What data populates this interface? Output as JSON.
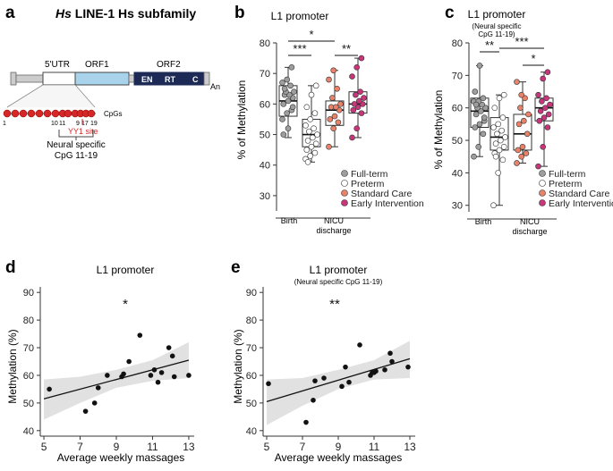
{
  "colors": {
    "fullterm": "#9e9e9e",
    "preterm": "#ffffff",
    "standard": "#e8836a",
    "early": "#c8357a",
    "utr": "#ffffff",
    "orf1": "#a9d3ea",
    "orf2": "#1d2a55",
    "cpg": "#d62728",
    "yy1": "#d62728",
    "ci_band": "#d9d9d9"
  },
  "panel_a": {
    "letter": "a",
    "title_italic": "Hs",
    "title_rest": "LINE-1 Hs subfamily",
    "utr_label": "5'UTR",
    "orf1_label": "ORF1",
    "orf2_label": "ORF2",
    "orf2_domains": [
      "EN",
      "RT",
      "C"
    ],
    "tail_label": "An",
    "cpgs_label": "CpGs",
    "cpg_numbers": [
      "1",
      "10",
      "11",
      "9",
      "17",
      "19"
    ],
    "yy1_label": "YY1 site",
    "neural_label_1": "Neural specific",
    "neural_label_2": "CpG 11-19"
  },
  "panel_letters": {
    "b": "b",
    "c": "c",
    "d": "d",
    "e": "e"
  },
  "chart_data": [
    {
      "panel": "b",
      "type": "box",
      "title": "L1 promoter",
      "subtitle": "",
      "ylabel": "% of Methylation",
      "ylim": [
        25,
        80
      ],
      "yticks": [
        30,
        40,
        50,
        60,
        70,
        80
      ],
      "groups": [
        {
          "name": "Full-term",
          "min": 49,
          "q1": 56,
          "median": 61,
          "q3": 66,
          "max": 72
        },
        {
          "name": "Preterm",
          "min": 41,
          "q1": 46,
          "median": 50,
          "q3": 55,
          "max": 66
        },
        {
          "name": "Standard Care",
          "min": 46,
          "q1": 53,
          "median": 58,
          "q3": 61,
          "max": 71
        },
        {
          "name": "Early Intervention",
          "min": 49,
          "q1": 57,
          "median": 60,
          "q3": 64,
          "max": 75
        }
      ],
      "points": [
        [
          55,
          57,
          58,
          60,
          61,
          62,
          63,
          63,
          64,
          64,
          66,
          67,
          68,
          72,
          50,
          52,
          59,
          65
        ],
        [
          42,
          43,
          44,
          45,
          46,
          47,
          48,
          49,
          50,
          51,
          52,
          53,
          55,
          57,
          59,
          63,
          66,
          41
        ],
        [
          46,
          52,
          54,
          55,
          56,
          58,
          59,
          59,
          60,
          62,
          65,
          68,
          71
        ],
        [
          49,
          52,
          57,
          58,
          59,
          60,
          60,
          61,
          62,
          63,
          64,
          69,
          72,
          75
        ]
      ],
      "group_labels": [
        "Birth",
        "NICU discharge"
      ],
      "significance": [
        {
          "label": "*",
          "from": 0,
          "to": 2
        },
        {
          "label": "***",
          "from": 0,
          "to": 1
        },
        {
          "label": "**",
          "from": 2,
          "to": 3
        }
      ],
      "legend": [
        "Full-term",
        "Preterm",
        "Standard Care",
        "Early Intervention"
      ]
    },
    {
      "panel": "c",
      "type": "box",
      "title": "L1 promoter",
      "subtitle": "(Neural specific CpG 11-19)",
      "ylabel": "% of Methylation",
      "ylim": [
        28,
        80
      ],
      "yticks": [
        30,
        40,
        50,
        60,
        70,
        80
      ],
      "groups": [
        {
          "name": "Full-term",
          "min": 45,
          "q1": 54,
          "median": 59,
          "q3": 63,
          "max": 73
        },
        {
          "name": "Preterm",
          "min": 30,
          "q1": 47,
          "median": 51,
          "q3": 57,
          "max": 64
        },
        {
          "name": "Standard Care",
          "min": 43,
          "q1": 47,
          "median": 52,
          "q3": 58,
          "max": 68
        },
        {
          "name": "Early Intervention",
          "min": 42,
          "q1": 56,
          "median": 60,
          "q3": 63,
          "max": 71
        }
      ],
      "points": [
        [
          45,
          48,
          52,
          54,
          55,
          56,
          58,
          59,
          60,
          60,
          61,
          62,
          62,
          63,
          65,
          73,
          57,
          61
        ],
        [
          30,
          40,
          44,
          46,
          47,
          48,
          49,
          50,
          51,
          52,
          53,
          54,
          55,
          57,
          60,
          63,
          64,
          45
        ],
        [
          43,
          45,
          46,
          47,
          48,
          52,
          55,
          56,
          58,
          60,
          63,
          68,
          64
        ],
        [
          42,
          48,
          54,
          56,
          57,
          58,
          59,
          60,
          61,
          62,
          63,
          64,
          69,
          71
        ]
      ],
      "group_labels": [
        "Birth",
        "NICU discharge"
      ],
      "significance": [
        {
          "label": "**",
          "from": 0,
          "to": 1
        },
        {
          "label": "***",
          "from": 1,
          "to": 3
        },
        {
          "label": "*",
          "from": 2,
          "to": 3
        }
      ],
      "legend": [
        "Full-term",
        "Preterm",
        "Standard Care",
        "Early Intervention"
      ]
    },
    {
      "panel": "d",
      "type": "scatter",
      "title": "L1 promoter",
      "subtitle": "",
      "annotation": "*",
      "xlabel": "Average weekly massages",
      "ylabel": "Methylation (%)",
      "xlim": [
        4.8,
        13.3
      ],
      "ylim": [
        38,
        92
      ],
      "xticks": [
        5,
        7,
        9,
        11,
        13
      ],
      "yticks": [
        40,
        50,
        60,
        70,
        80,
        90
      ],
      "x": [
        5.3,
        7.3,
        7.8,
        8.0,
        8.5,
        9.3,
        9.4,
        9.7,
        10.3,
        10.9,
        11.1,
        11.3,
        11.5,
        11.9,
        12.1,
        12.2,
        13.0
      ],
      "y": [
        55,
        47,
        50,
        55.5,
        60,
        59.5,
        60.5,
        65,
        74.5,
        60,
        62,
        57.5,
        61,
        70,
        67,
        59.5,
        60
      ],
      "fit": {
        "x": [
          5,
          13
        ],
        "y": [
          51.5,
          65.5
        ]
      },
      "ci_lower": [
        44,
        50,
        55.5,
        58,
        59
      ],
      "ci_upper": [
        58.5,
        59.5,
        62,
        65.5,
        72
      ],
      "ci_x": [
        5,
        7,
        9,
        11,
        13
      ]
    },
    {
      "panel": "e",
      "type": "scatter",
      "title": "L1 promoter",
      "subtitle": "(Neural specific CpG 11-19)",
      "annotation": "**",
      "xlabel": "Average weekly massages",
      "ylabel": "Methylation (%)",
      "xlim": [
        4.8,
        13.3
      ],
      "ylim": [
        38,
        92
      ],
      "xticks": [
        5,
        7,
        9,
        11,
        13
      ],
      "yticks": [
        40,
        50,
        60,
        70,
        80,
        90
      ],
      "x": [
        5.1,
        7.2,
        7.6,
        7.7,
        8.2,
        9.2,
        9.4,
        9.6,
        10.2,
        10.8,
        10.9,
        11.0,
        11.1,
        11.6,
        11.9,
        12.0,
        12.9
      ],
      "y": [
        57,
        43,
        51,
        58,
        59,
        56,
        63,
        57.5,
        71,
        60,
        61,
        61,
        61.5,
        62,
        68,
        65,
        63
      ],
      "fit": {
        "x": [
          5,
          13
        ],
        "y": [
          50.5,
          66
        ]
      },
      "ci_lower": [
        42,
        49,
        55,
        58.5,
        59
      ],
      "ci_upper": [
        58.5,
        59,
        62,
        65.5,
        72.5
      ],
      "ci_x": [
        5,
        7,
        9,
        11,
        13
      ]
    }
  ]
}
